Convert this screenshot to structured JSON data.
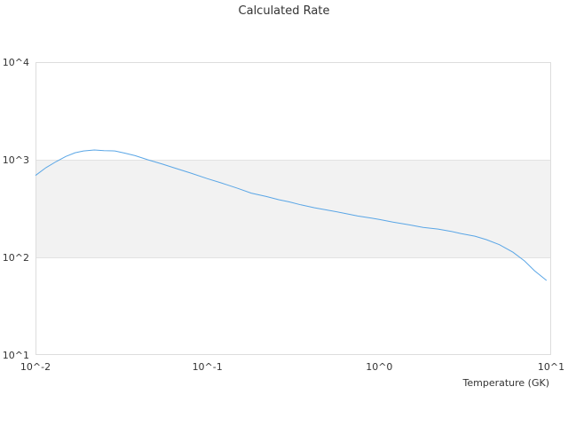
{
  "chart_data": {
    "type": "line",
    "title": "Calculated Rate",
    "xlabel": "Temperature (GK)",
    "ylabel": "",
    "x_scale": "log",
    "y_scale": "log",
    "xlim": [
      0.01,
      10
    ],
    "ylim": [
      10,
      10000
    ],
    "x_ticks": [
      "10^-2",
      "10^-1",
      "10^0",
      "10^1"
    ],
    "y_ticks": [
      "10^1",
      "10^2",
      "10^3",
      "10^4"
    ],
    "grid": "horizontal",
    "band_color": "#f2f2f2",
    "series": [
      {
        "color": "#5aa6e6",
        "x": [
          0.01,
          0.0115,
          0.0132,
          0.015,
          0.017,
          0.019,
          0.022,
          0.025,
          0.029,
          0.033,
          0.038,
          0.045,
          0.055,
          0.065,
          0.08,
          0.1,
          0.12,
          0.15,
          0.18,
          0.22,
          0.26,
          0.3,
          0.35,
          0.42,
          0.5,
          0.6,
          0.75,
          0.9,
          1.0,
          1.2,
          1.5,
          1.8,
          2.2,
          2.6,
          3.0,
          3.6,
          4.2,
          5.0,
          6.0,
          7.0,
          8.0,
          9.4
        ],
        "y": [
          690,
          830,
          960,
          1080,
          1180,
          1230,
          1260,
          1240,
          1230,
          1170,
          1100,
          1000,
          900,
          820,
          730,
          640,
          580,
          510,
          455,
          420,
          390,
          370,
          345,
          322,
          305,
          287,
          265,
          252,
          245,
          230,
          215,
          203,
          195,
          185,
          175,
          165,
          152,
          135,
          113,
          92,
          73,
          58
        ]
      }
    ]
  }
}
